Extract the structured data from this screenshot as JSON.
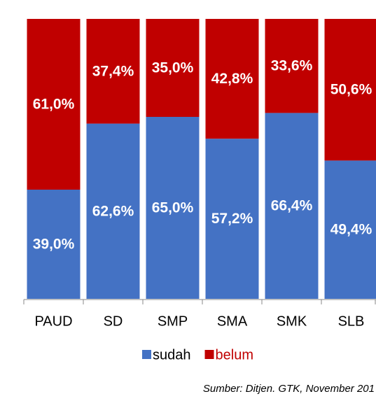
{
  "chart_data": {
    "type": "stacked_bar",
    "categories": [
      "PAUD",
      "SD",
      "SMP",
      "SMA",
      "SMK",
      "SLB"
    ],
    "series": [
      {
        "name": "sudah",
        "color": "#4472c4",
        "values": [
          39.0,
          62.6,
          65.0,
          57.2,
          66.4,
          49.4
        ],
        "value_labels": [
          "39,0%",
          "62,6%",
          "65,0%",
          "57,2%",
          "66,4%",
          "49,4%"
        ]
      },
      {
        "name": "belum",
        "color": "#c00000",
        "values": [
          61.0,
          37.4,
          35.0,
          42.8,
          33.6,
          50.6
        ],
        "value_labels": [
          "61,0%",
          "37,4%",
          "35,0%",
          "42,8%",
          "33,6%",
          "50,6%"
        ]
      }
    ],
    "ylim": [
      0,
      100
    ],
    "legend": "bottom",
    "source": "Sumber: Ditjen. GTK, November 201"
  }
}
